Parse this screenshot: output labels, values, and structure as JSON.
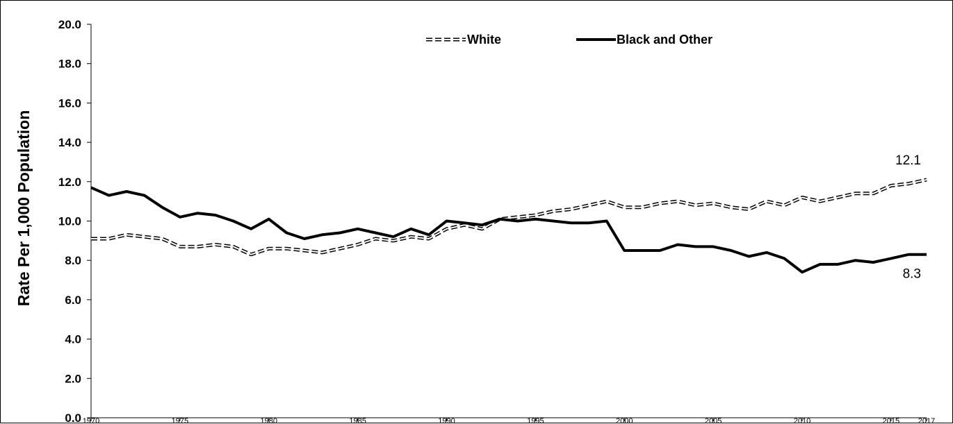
{
  "chart_data": {
    "type": "line",
    "ylabel": "Rate Per 1,000 Population",
    "ylim": [
      0,
      20
    ],
    "yticks": [
      "0.0",
      "2.0",
      "4.0",
      "6.0",
      "8.0",
      "10.0",
      "12.0",
      "14.0",
      "16.0",
      "18.0",
      "20.0"
    ],
    "xticks": [
      "1970",
      "1975",
      "1980",
      "1985",
      "1990",
      "1995",
      "2000",
      "2005",
      "2010",
      "2015",
      "2017"
    ],
    "x": [
      1970,
      1971,
      1972,
      1973,
      1974,
      1975,
      1976,
      1977,
      1978,
      1979,
      1980,
      1981,
      1982,
      1983,
      1984,
      1985,
      1986,
      1987,
      1988,
      1989,
      1990,
      1991,
      1992,
      1993,
      1994,
      1995,
      1996,
      1997,
      1998,
      1999,
      2000,
      2001,
      2002,
      2003,
      2004,
      2005,
      2006,
      2007,
      2008,
      2009,
      2010,
      2011,
      2012,
      2013,
      2014,
      2015,
      2016,
      2017
    ],
    "series": [
      {
        "name": "White",
        "values": [
          9.1,
          9.1,
          9.3,
          9.2,
          9.1,
          8.7,
          8.7,
          8.8,
          8.7,
          8.3,
          8.6,
          8.6,
          8.5,
          8.4,
          8.6,
          8.8,
          9.1,
          9.0,
          9.2,
          9.1,
          9.6,
          9.8,
          9.6,
          10.1,
          10.2,
          10.3,
          10.5,
          10.6,
          10.8,
          11.0,
          10.7,
          10.7,
          10.9,
          11.0,
          10.8,
          10.9,
          10.7,
          10.6,
          11.0,
          10.8,
          11.2,
          11.0,
          11.2,
          11.4,
          11.4,
          11.8,
          11.9,
          12.1
        ],
        "end_label": "12.1",
        "style": "dashed"
      },
      {
        "name": "Black and Other",
        "values": [
          11.7,
          11.3,
          11.5,
          11.3,
          10.7,
          10.2,
          10.4,
          10.3,
          10.0,
          9.6,
          10.1,
          9.4,
          9.1,
          9.3,
          9.4,
          9.6,
          9.4,
          9.2,
          9.6,
          9.3,
          10.0,
          9.9,
          9.8,
          10.1,
          10.0,
          10.1,
          10.0,
          9.9,
          9.9,
          10.0,
          8.5,
          8.5,
          8.5,
          8.8,
          8.7,
          8.7,
          8.5,
          8.2,
          8.4,
          8.1,
          7.4,
          7.8,
          7.8,
          8.0,
          7.9,
          8.1,
          8.3,
          8.3
        ],
        "end_label": "8.3",
        "style": "solid"
      }
    ],
    "grid": false,
    "legend": "top-center"
  }
}
